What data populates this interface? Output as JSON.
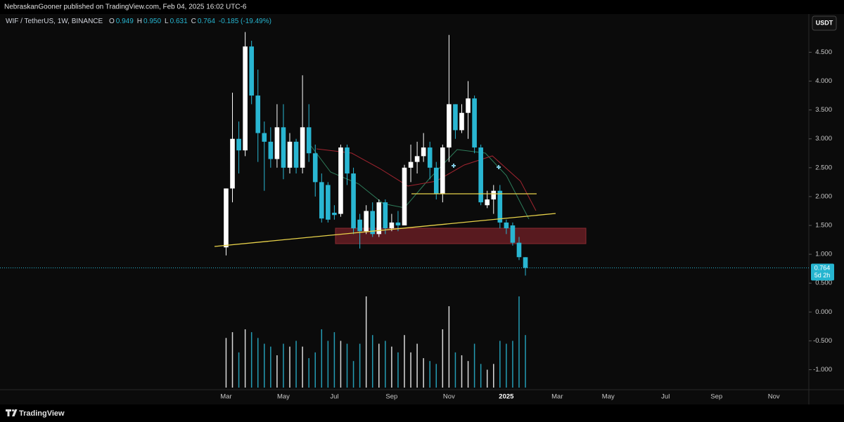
{
  "header": {
    "publisher": "NebraskanGooner published on TradingView.com, Feb 04, 2025 16:02 UTC-6"
  },
  "chart_data": {
    "type": "candlestick",
    "symbol": "WIF / TetherUS, 1W, BINANCE",
    "ohlc": [
      {
        "key": "O",
        "value": "0.949"
      },
      {
        "key": "H",
        "value": "0.950"
      },
      {
        "key": "L",
        "value": "0.631"
      },
      {
        "key": "C",
        "value": "0.764"
      }
    ],
    "change": "-0.185 (-19.49%)",
    "currency": "USDT",
    "categories": [
      null,
      null,
      null,
      null,
      null,
      null,
      null,
      null,
      null,
      null,
      null,
      null,
      null,
      null,
      null,
      null,
      null,
      null,
      null,
      null,
      null,
      null,
      null,
      null,
      null,
      null,
      null,
      null,
      null,
      null,
      null,
      null,
      null,
      null,
      null,
      "Mar",
      null,
      null,
      null,
      null,
      null,
      null,
      null,
      null,
      "May",
      null,
      null,
      null,
      null,
      null,
      null,
      null,
      "Jul",
      null,
      null,
      null,
      null,
      null,
      null,
      null,
      null,
      "Sep",
      null,
      null,
      null,
      null,
      null,
      null,
      null,
      null,
      "Nov",
      null,
      null,
      null,
      null,
      null,
      null,
      null,
      null,
      "2025",
      null,
      null,
      null,
      null,
      null,
      null,
      null,
      "Mar",
      null,
      null,
      null,
      null,
      null,
      null,
      null,
      "May",
      null,
      null,
      null,
      null,
      null,
      null,
      null,
      null,
      "Jul",
      null,
      null,
      null,
      null,
      null,
      null,
      null,
      "Sep",
      null,
      null,
      null,
      null,
      null,
      null,
      null,
      null,
      "Nov",
      null,
      null,
      null,
      null,
      null
    ],
    "open": [
      null,
      null,
      null,
      null,
      null,
      null,
      null,
      null,
      null,
      null,
      null,
      null,
      null,
      null,
      null,
      null,
      null,
      null,
      null,
      null,
      null,
      null,
      null,
      null,
      null,
      null,
      null,
      null,
      null,
      null,
      null,
      null,
      null,
      null,
      null,
      1.12,
      2.14,
      3.0,
      2.8,
      4.6,
      3.75,
      3.1,
      2.95,
      2.65,
      3.2,
      2.5,
      2.95,
      2.5,
      3.2,
      2.75,
      2.25,
      2.2,
      1.72,
      1.7,
      2.85,
      2.4,
      1.6,
      1.4,
      1.75,
      1.35,
      1.9,
      1.45,
      1.55,
      1.5,
      2.5,
      2.6,
      2.7,
      2.85,
      2.5,
      2.05,
      2.85,
      3.6,
      3.15,
      3.45,
      3.7,
      2.85,
      1.85,
      1.95,
      2.1,
      1.55,
      1.5,
      1.2,
      0.949,
      null,
      null,
      null,
      null,
      null,
      null,
      null,
      null,
      null,
      null,
      null,
      null,
      null,
      null,
      null,
      null,
      null,
      null,
      null,
      null,
      null,
      null,
      null,
      null,
      null,
      null,
      null,
      null,
      null,
      null,
      null,
      null,
      null,
      null,
      null,
      null,
      null,
      null,
      null,
      null,
      null,
      null,
      null,
      null
    ],
    "high": [
      null,
      null,
      null,
      null,
      null,
      null,
      null,
      null,
      null,
      null,
      null,
      null,
      null,
      null,
      null,
      null,
      null,
      null,
      null,
      null,
      null,
      null,
      null,
      null,
      null,
      null,
      null,
      null,
      null,
      null,
      null,
      null,
      null,
      null,
      null,
      2.14,
      3.8,
      3.3,
      4.85,
      4.7,
      4.2,
      3.3,
      3.2,
      3.6,
      3.6,
      3.1,
      3.0,
      4.1,
      3.6,
      2.9,
      2.4,
      2.25,
      1.85,
      2.9,
      2.9,
      2.5,
      1.7,
      1.85,
      1.9,
      1.95,
      1.95,
      1.7,
      1.75,
      2.55,
      2.9,
      2.95,
      3.1,
      2.95,
      2.6,
      2.9,
      4.8,
      3.6,
      3.6,
      4.0,
      3.75,
      2.9,
      2.1,
      2.2,
      2.2,
      1.6,
      1.55,
      1.3,
      0.95,
      null,
      null,
      null,
      null,
      null,
      null,
      null,
      null,
      null,
      null,
      null,
      null,
      null,
      null,
      null,
      null,
      null,
      null,
      null,
      null,
      null,
      null,
      null,
      null,
      null,
      null,
      null,
      null,
      null,
      null,
      null,
      null,
      null,
      null,
      null,
      null,
      null,
      null,
      null,
      null,
      null,
      null,
      null,
      null
    ],
    "low": [
      null,
      null,
      null,
      null,
      null,
      null,
      null,
      null,
      null,
      null,
      null,
      null,
      null,
      null,
      null,
      null,
      null,
      null,
      null,
      null,
      null,
      null,
      null,
      null,
      null,
      null,
      null,
      null,
      null,
      null,
      null,
      null,
      null,
      null,
      null,
      0.98,
      1.9,
      2.4,
      2.7,
      3.6,
      2.6,
      2.1,
      2.5,
      2.5,
      2.3,
      2.4,
      2.4,
      2.4,
      2.6,
      2.0,
      1.55,
      1.55,
      1.6,
      1.65,
      2.2,
      1.35,
      1.1,
      1.35,
      1.3,
      1.3,
      1.35,
      1.4,
      1.4,
      1.5,
      2.25,
      2.4,
      2.6,
      2.3,
      1.95,
      1.9,
      2.6,
      3.0,
      3.1,
      3.0,
      2.75,
      1.85,
      1.8,
      1.7,
      1.45,
      1.35,
      1.15,
      0.9,
      0.631,
      null,
      null,
      null,
      null,
      null,
      null,
      null,
      null,
      null,
      null,
      null,
      null,
      null,
      null,
      null,
      null,
      null,
      null,
      null,
      null,
      null,
      null,
      null,
      null,
      null,
      null,
      null,
      null,
      null,
      null,
      null,
      null,
      null,
      null,
      null,
      null,
      null,
      null,
      null,
      null,
      null,
      null,
      null,
      null
    ],
    "close": [
      null,
      null,
      null,
      null,
      null,
      null,
      null,
      null,
      null,
      null,
      null,
      null,
      null,
      null,
      null,
      null,
      null,
      null,
      null,
      null,
      null,
      null,
      null,
      null,
      null,
      null,
      null,
      null,
      null,
      null,
      null,
      null,
      null,
      null,
      null,
      2.14,
      3.0,
      2.8,
      4.6,
      3.75,
      3.1,
      2.95,
      2.65,
      3.2,
      2.5,
      2.95,
      2.5,
      3.2,
      2.75,
      2.25,
      1.62,
      1.6,
      1.68,
      2.85,
      2.4,
      1.45,
      1.4,
      1.75,
      1.35,
      1.9,
      1.45,
      1.55,
      1.5,
      2.5,
      2.6,
      2.7,
      2.85,
      2.5,
      2.05,
      2.85,
      3.6,
      3.15,
      3.45,
      3.7,
      2.85,
      1.9,
      1.95,
      2.1,
      1.55,
      1.45,
      1.2,
      0.95,
      0.764,
      null,
      null,
      null,
      null,
      null,
      null,
      null,
      null,
      null,
      null,
      null,
      null,
      null,
      null,
      null,
      null,
      null,
      null,
      null,
      null,
      null,
      null,
      null,
      null,
      null,
      null,
      null,
      null,
      null,
      null,
      null,
      null,
      null,
      null,
      null,
      null,
      null,
      null,
      null,
      null,
      null,
      null,
      null,
      null
    ],
    "volume": [
      null,
      null,
      null,
      null,
      null,
      null,
      null,
      null,
      null,
      null,
      null,
      null,
      null,
      null,
      null,
      null,
      null,
      null,
      null,
      null,
      null,
      null,
      null,
      null,
      null,
      null,
      null,
      null,
      null,
      null,
      null,
      null,
      null,
      null,
      null,
      -0.45,
      -0.35,
      -0.7,
      -0.3,
      -0.35,
      -0.45,
      -0.55,
      -0.6,
      -0.75,
      -0.55,
      -0.6,
      -0.5,
      -0.6,
      -0.8,
      -0.7,
      -0.3,
      -0.5,
      -0.35,
      -0.5,
      -0.55,
      -0.85,
      -0.55,
      0.27,
      -0.4,
      -0.55,
      -0.5,
      -0.6,
      -0.7,
      -0.4,
      -0.7,
      -0.55,
      -0.8,
      -0.85,
      -0.9,
      -0.3,
      0.1,
      -0.7,
      -0.75,
      -0.85,
      -0.55,
      -0.9,
      -1.0,
      -0.9,
      -0.5,
      -0.55,
      -0.5,
      0.27,
      -0.4,
      null,
      null,
      null,
      null,
      null,
      null,
      null,
      null,
      null,
      null,
      null,
      null,
      null,
      null,
      null,
      null,
      null,
      null,
      null,
      null,
      null,
      null,
      null,
      null,
      null,
      null,
      null,
      null,
      null,
      null,
      null,
      null,
      null,
      null,
      null,
      null,
      null,
      null,
      null,
      null,
      null,
      null,
      null,
      null
    ],
    "up_color": "#ffffff",
    "down_color": "#29b6d2",
    "ylim": [
      -1.31,
      5.15
    ],
    "yticks": [
      {
        "value": 4.5,
        "label": "4.500"
      },
      {
        "value": 4,
        "label": "4.000"
      },
      {
        "value": 3.5,
        "label": "3.500"
      },
      {
        "value": 3,
        "label": "3.000"
      },
      {
        "value": 2.5,
        "label": "2.500"
      },
      {
        "value": 2,
        "label": "2.000"
      },
      {
        "value": 1.5,
        "label": "1.500"
      },
      {
        "value": 1,
        "label": "1.000"
      },
      {
        "value": 0.5,
        "label": "0.500"
      },
      {
        "value": 0,
        "label": "0.000"
      },
      {
        "value": -0.5,
        "label": "-0.500"
      },
      {
        "value": -1,
        "label": "-1.000"
      }
    ],
    "last_price": 0.764,
    "countdown": "5d 2h"
  },
  "footer": {
    "brand": "TradingView"
  }
}
